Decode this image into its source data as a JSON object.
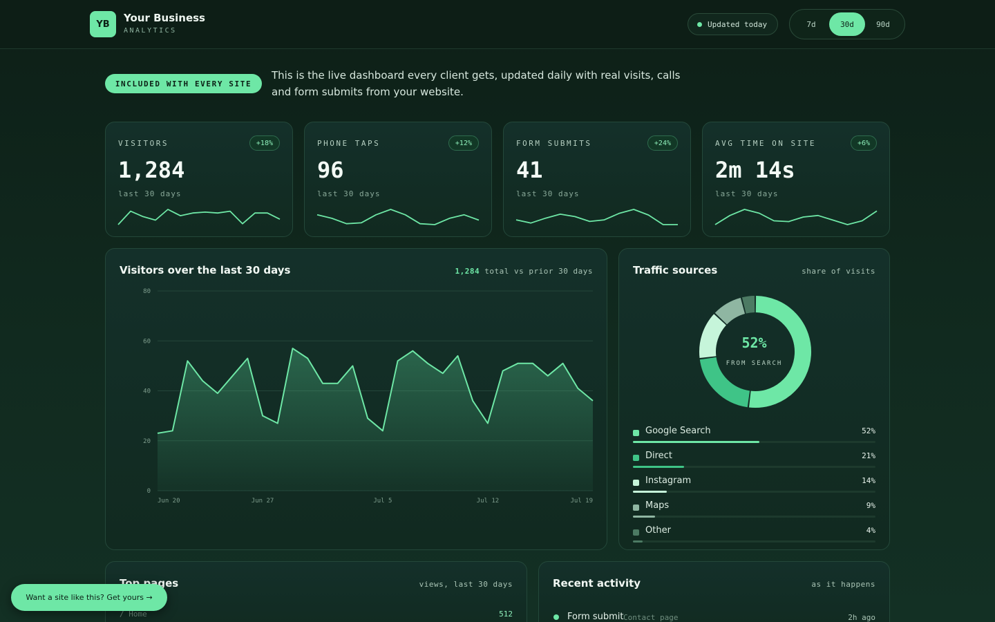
{
  "header": {
    "logo_initials": "YB",
    "brand_name": "Your Business",
    "brand_sub": "ANALYTICS",
    "status": "Updated today",
    "ranges": [
      {
        "label": "7d",
        "active": false
      },
      {
        "label": "30d",
        "active": true
      },
      {
        "label": "90d",
        "active": false
      }
    ]
  },
  "intro": {
    "badge": "INCLUDED WITH EVERY SITE",
    "text": "This is the live dashboard every client gets, updated daily with real visits, calls and form submits from your website."
  },
  "kpis": [
    {
      "label": "VISITORS",
      "change": "+18%",
      "value": "1,284",
      "sub": "last 30 days",
      "spark": [
        2,
        17,
        11,
        7,
        19,
        12,
        15,
        16,
        15,
        17,
        3,
        15,
        15,
        8
      ]
    },
    {
      "label": "PHONE TAPS",
      "change": "+12%",
      "value": "96",
      "sub": "last 30 days",
      "spark": [
        12,
        8,
        2,
        3,
        12,
        18,
        12,
        2,
        1,
        8,
        12,
        6
      ]
    },
    {
      "label": "FORM SUBMITS",
      "change": "+24%",
      "value": "41",
      "sub": "last 30 days",
      "spark": [
        6,
        2,
        8,
        13,
        10,
        4,
        6,
        14,
        19,
        12,
        0,
        0
      ]
    },
    {
      "label": "AVG TIME ON SITE",
      "change": "+6%",
      "value": "2m 14s",
      "sub": "last 30 days",
      "spark": [
        0,
        12,
        20,
        15,
        5,
        4,
        10,
        12,
        6,
        0,
        5,
        18
      ]
    }
  ],
  "visitors_panel": {
    "title": "Visitors over the last 30 days",
    "meta_value": "1,284",
    "meta_text": "total vs prior 30 days"
  },
  "chart_data": {
    "type": "area",
    "title": "Visitors over the last 30 days",
    "x": [
      "Jun 20",
      "Jun 21",
      "Jun 22",
      "Jun 23",
      "Jun 24",
      "Jun 25",
      "Jun 26",
      "Jun 27",
      "Jun 28",
      "Jun 29",
      "Jun 30",
      "Jul 1",
      "Jul 2",
      "Jul 3",
      "Jul 4",
      "Jul 5",
      "Jul 6",
      "Jul 7",
      "Jul 8",
      "Jul 9",
      "Jul 10",
      "Jul 11",
      "Jul 12",
      "Jul 13",
      "Jul 14",
      "Jul 15",
      "Jul 16",
      "Jul 17",
      "Jul 18",
      "Jul 19"
    ],
    "x_ticks": [
      "Jun 20",
      "Jun 27",
      "Jul 5",
      "Jul 12",
      "Jul 19"
    ],
    "series": [
      {
        "values": [
          23,
          24,
          52,
          44,
          39,
          46,
          53,
          30,
          27,
          57,
          53,
          43,
          43,
          50,
          29,
          24,
          52,
          56,
          51,
          47,
          54,
          36,
          27,
          48,
          51,
          51,
          46,
          51,
          41,
          36
        ]
      }
    ],
    "yticks": [
      0,
      20,
      40,
      60,
      80
    ],
    "ylim": [
      0,
      80
    ],
    "grid": true
  },
  "traffic": {
    "title": "Traffic sources",
    "meta": "share of visits",
    "center_value": "52%",
    "center_label": "FROM SEARCH",
    "sources": [
      {
        "name": "Google Search",
        "pct": "52%",
        "value": 52,
        "color": "#6ee7a6"
      },
      {
        "name": "Direct",
        "pct": "21%",
        "value": 21,
        "color": "#3fc487"
      },
      {
        "name": "Instagram",
        "pct": "14%",
        "value": 14,
        "color": "#c6f5da"
      },
      {
        "name": "Maps",
        "pct": "9%",
        "value": 9,
        "color": "#8fb6a2"
      },
      {
        "name": "Other",
        "pct": "4%",
        "value": 4,
        "color": "#4c7a63"
      }
    ]
  },
  "top_pages": {
    "title": "Top pages",
    "meta": "views, last 30 days",
    "rows": [
      {
        "path": "/ Home",
        "views": "512"
      }
    ]
  },
  "activity": {
    "title": "Recent activity",
    "meta": "as it happens",
    "items": [
      {
        "event": "Form submit",
        "detail": "Contact page",
        "time": "2h ago"
      }
    ]
  },
  "cta": {
    "label": "Want a site like this? Get yours →"
  }
}
